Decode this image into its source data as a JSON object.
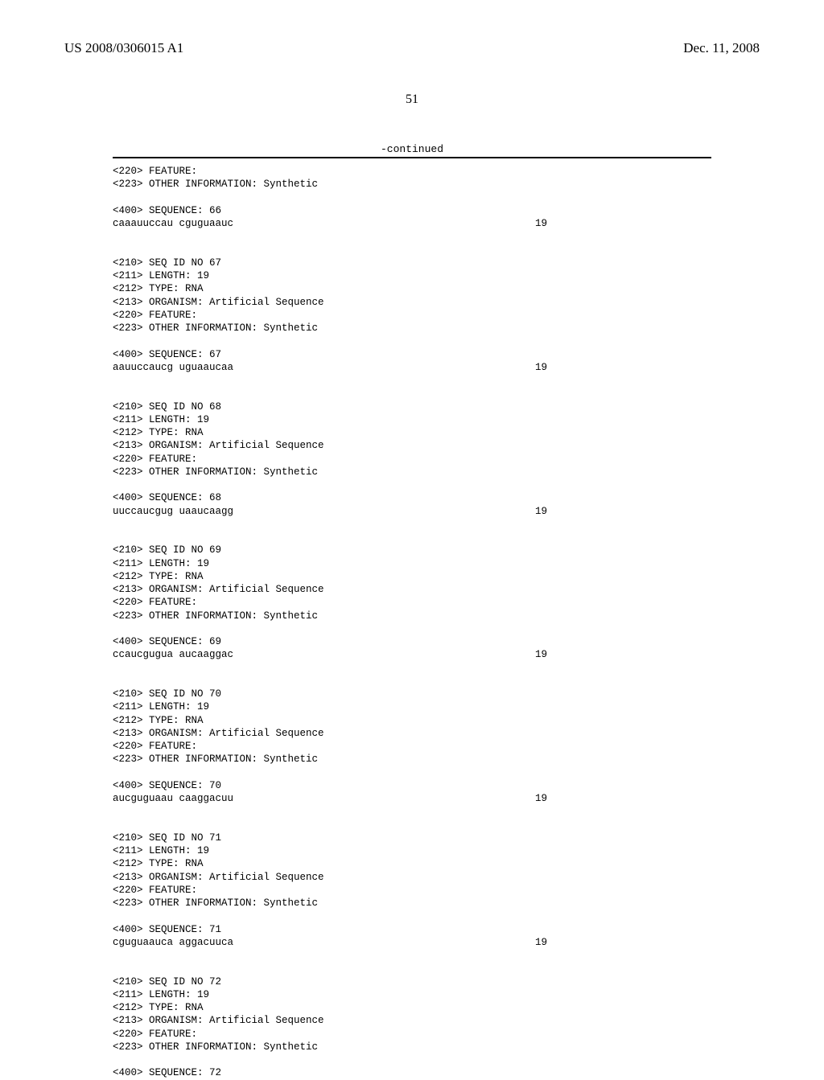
{
  "header": {
    "left": "US 2008/0306015 A1",
    "right": "Dec. 11, 2008"
  },
  "page_number": "51",
  "continued_label": "-continued",
  "sequences": [
    {
      "pre": "<220> FEATURE:\n<223> OTHER INFORMATION: Synthetic\n\n<400> SEQUENCE: 66\n",
      "seq_text": "caaauuccau cguguaauc",
      "seq_len": "19"
    },
    {
      "pre": "\n\n<210> SEQ ID NO 67\n<211> LENGTH: 19\n<212> TYPE: RNA\n<213> ORGANISM: Artificial Sequence\n<220> FEATURE:\n<223> OTHER INFORMATION: Synthetic\n\n<400> SEQUENCE: 67\n",
      "seq_text": "aauuccaucg uguaaucaa",
      "seq_len": "19"
    },
    {
      "pre": "\n\n<210> SEQ ID NO 68\n<211> LENGTH: 19\n<212> TYPE: RNA\n<213> ORGANISM: Artificial Sequence\n<220> FEATURE:\n<223> OTHER INFORMATION: Synthetic\n\n<400> SEQUENCE: 68\n",
      "seq_text": "uuccaucgug uaaucaagg",
      "seq_len": "19"
    },
    {
      "pre": "\n\n<210> SEQ ID NO 69\n<211> LENGTH: 19\n<212> TYPE: RNA\n<213> ORGANISM: Artificial Sequence\n<220> FEATURE:\n<223> OTHER INFORMATION: Synthetic\n\n<400> SEQUENCE: 69\n",
      "seq_text": "ccaucgugua aucaaggac",
      "seq_len": "19"
    },
    {
      "pre": "\n\n<210> SEQ ID NO 70\n<211> LENGTH: 19\n<212> TYPE: RNA\n<213> ORGANISM: Artificial Sequence\n<220> FEATURE:\n<223> OTHER INFORMATION: Synthetic\n\n<400> SEQUENCE: 70\n",
      "seq_text": "aucguguaau caaggacuu",
      "seq_len": "19"
    },
    {
      "pre": "\n\n<210> SEQ ID NO 71\n<211> LENGTH: 19\n<212> TYPE: RNA\n<213> ORGANISM: Artificial Sequence\n<220> FEATURE:\n<223> OTHER INFORMATION: Synthetic\n\n<400> SEQUENCE: 71\n",
      "seq_text": "cguguaauca aggacuuca",
      "seq_len": "19"
    },
    {
      "pre": "\n\n<210> SEQ ID NO 72\n<211> LENGTH: 19\n<212> TYPE: RNA\n<213> ORGANISM: Artificial Sequence\n<220> FEATURE:\n<223> OTHER INFORMATION: Synthetic\n\n<400> SEQUENCE: 72",
      "seq_text": "",
      "seq_len": ""
    }
  ]
}
